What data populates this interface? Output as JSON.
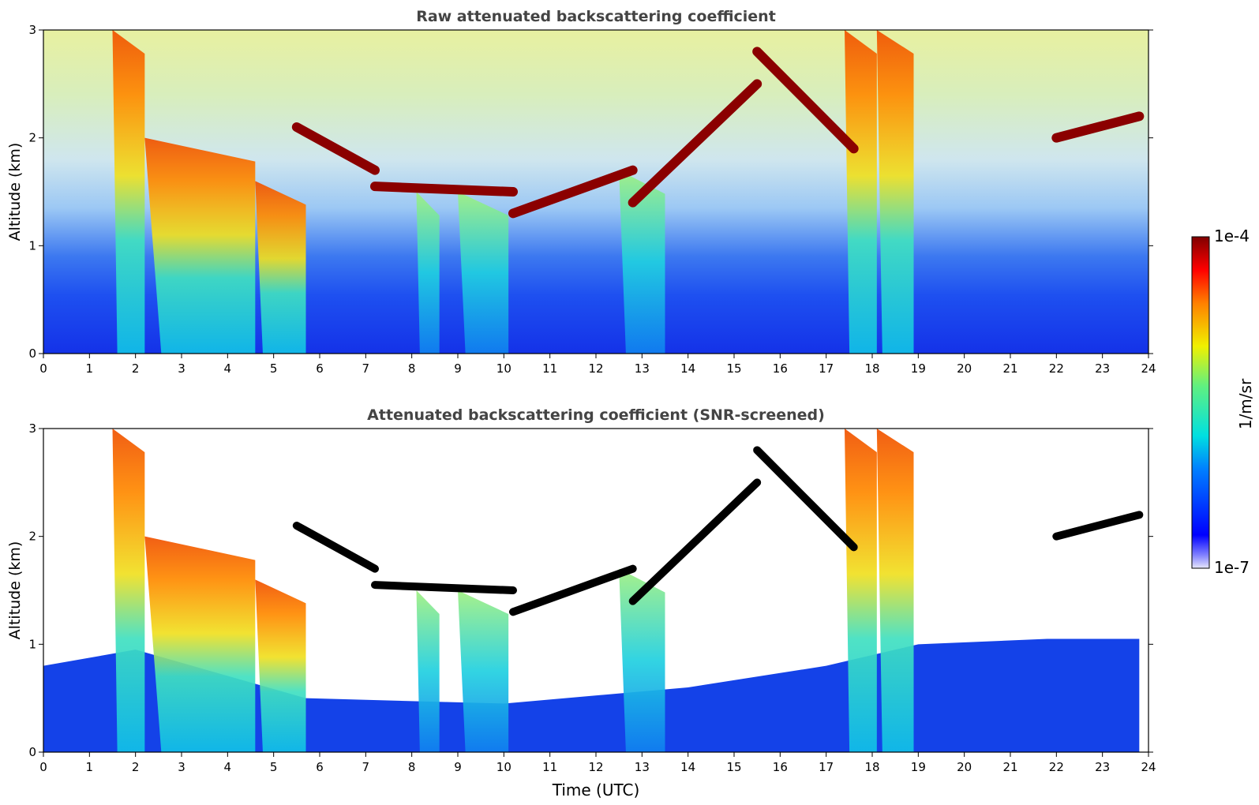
{
  "chart_data": [
    {
      "type": "heatmap",
      "title": "Raw attenuated backscattering coefficient",
      "xlabel": "",
      "ylabel": "Altitude (km)",
      "xlim": [
        0,
        24
      ],
      "ylim": [
        0,
        3
      ],
      "x_ticks": [
        "0",
        "1",
        "2",
        "3",
        "4",
        "5",
        "6",
        "7",
        "8",
        "9",
        "10",
        "11",
        "12",
        "13",
        "14",
        "15",
        "16",
        "17",
        "18",
        "19",
        "20",
        "21",
        "22",
        "23",
        "24"
      ],
      "y_ticks": [
        "0",
        "1",
        "2",
        "3"
      ],
      "cloud_layers": [
        {
          "x": [
            5.5,
            7.2
          ],
          "y": [
            2.1,
            1.7
          ]
        },
        {
          "x": [
            7.2,
            10.2
          ],
          "y": [
            1.55,
            1.5
          ]
        },
        {
          "x": [
            10.2,
            12.8
          ],
          "y": [
            1.3,
            1.7
          ]
        },
        {
          "x": [
            12.8,
            15.5
          ],
          "y": [
            1.4,
            2.5
          ]
        },
        {
          "x": [
            15.5,
            17.6
          ],
          "y": [
            2.8,
            1.9
          ]
        },
        {
          "x": [
            22.0,
            23.8
          ],
          "y": [
            2.0,
            2.2
          ]
        }
      ],
      "rain_shafts": [
        {
          "x": [
            1.5,
            2.2
          ],
          "top_km": 3.0
        },
        {
          "x": [
            2.2,
            4.6
          ],
          "top_km": 2.0
        },
        {
          "x": [
            4.6,
            5.7
          ],
          "top_km": 1.6
        },
        {
          "x": [
            8.1,
            8.6
          ],
          "top_km": 1.5
        },
        {
          "x": [
            9.0,
            10.1
          ],
          "top_km": 1.5
        },
        {
          "x": [
            12.5,
            13.5
          ],
          "top_km": 1.7
        },
        {
          "x": [
            17.4,
            18.1
          ],
          "top_km": 3.0
        },
        {
          "x": [
            18.1,
            18.9
          ],
          "top_km": 3.0
        }
      ]
    },
    {
      "type": "heatmap",
      "title": "Attenuated backscattering coefficient (SNR-screened)",
      "xlabel": "Time (UTC)",
      "ylabel": "Altitude (km)",
      "xlim": [
        0,
        24
      ],
      "ylim": [
        0,
        3
      ],
      "x_ticks": [
        "0",
        "1",
        "2",
        "3",
        "4",
        "5",
        "6",
        "7",
        "8",
        "9",
        "10",
        "11",
        "12",
        "13",
        "14",
        "15",
        "16",
        "17",
        "18",
        "19",
        "20",
        "21",
        "22",
        "23",
        "24"
      ],
      "y_ticks": [
        "0",
        "1",
        "2",
        "3"
      ],
      "boundary_layer_top_km": [
        {
          "t": 0,
          "h": 0.8
        },
        {
          "t": 2,
          "h": 0.95
        },
        {
          "t": 5.7,
          "h": 0.5
        },
        {
          "t": 10,
          "h": 0.45
        },
        {
          "t": 14,
          "h": 0.6
        },
        {
          "t": 17,
          "h": 0.8
        },
        {
          "t": 19,
          "h": 1.0
        },
        {
          "t": 21.8,
          "h": 1.05
        },
        {
          "t": 23.8,
          "h": 1.05
        }
      ]
    }
  ],
  "colorbar": {
    "label": "1/m/sr",
    "max_label": "1e-4",
    "min_label": "1e-7",
    "scale": "log",
    "range": [
      1e-07,
      0.0001
    ],
    "colormap": "jet"
  },
  "colors": {
    "low": "#0a28e6",
    "cyan": "#2ad4e0",
    "yellow": "#f5d020",
    "high": "#8b0000",
    "saturated": "#000000"
  }
}
